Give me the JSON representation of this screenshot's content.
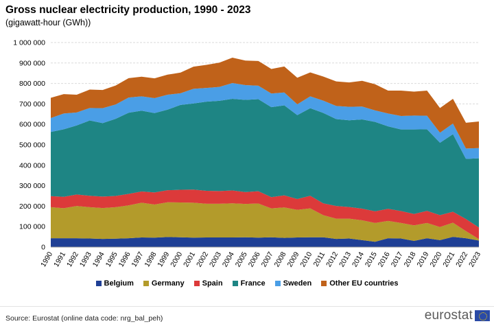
{
  "title": "Gross nuclear electricity production, 1990 - 2023",
  "subtitle": "(gigawatt-hour  (GWh))",
  "source": "Source: Eurostat (online data code: nrg_bal_peh)",
  "logo_text": "eurostat",
  "chart_data": {
    "type": "area",
    "stacked": true,
    "x": [
      "1990",
      "1991",
      "1992",
      "1993",
      "1994",
      "1995",
      "1996",
      "1997",
      "1998",
      "1999",
      "2000",
      "2001",
      "2002",
      "2003",
      "2004",
      "2005",
      "2006",
      "2007",
      "2008",
      "2009",
      "2010",
      "2011",
      "2012",
      "2013",
      "2014",
      "2015",
      "2016",
      "2017",
      "2018",
      "2019",
      "2020",
      "2021",
      "2022",
      "2023"
    ],
    "ylim": [
      0,
      1000000
    ],
    "yticks": [
      0,
      100000,
      200000,
      300000,
      400000,
      500000,
      600000,
      700000,
      800000,
      900000,
      1000000
    ],
    "ytick_labels": [
      "0",
      "100 000",
      "200 000",
      "300 000",
      "400 000",
      "500 000",
      "600 000",
      "700 000",
      "800 000",
      "900 000",
      "1 000 000"
    ],
    "grid": true,
    "legend_position": "bottom",
    "series": [
      {
        "name": "Belgium",
        "color": "#1f3f95",
        "values": [
          43000,
          43000,
          43000,
          42000,
          40000,
          41000,
          43000,
          47000,
          46000,
          49000,
          48000,
          46000,
          47000,
          47000,
          47000,
          48000,
          46000,
          48000,
          45000,
          47000,
          48000,
          48000,
          40000,
          42000,
          34000,
          26000,
          43000,
          42000,
          30000,
          43000,
          34000,
          50000,
          43000,
          32000
        ]
      },
      {
        "name": "Germany",
        "color": "#b39b2b",
        "values": [
          152000,
          147000,
          158000,
          153000,
          151000,
          154000,
          161000,
          170000,
          162000,
          170000,
          170000,
          171000,
          165000,
          165000,
          167000,
          163000,
          167000,
          141000,
          149000,
          135000,
          141000,
          108000,
          99000,
          97000,
          97000,
          92000,
          85000,
          76000,
          76000,
          75000,
          64000,
          69000,
          35000,
          7000
        ]
      },
      {
        "name": "Spain",
        "color": "#dc3a3a",
        "values": [
          54000,
          56000,
          56000,
          56000,
          56000,
          55000,
          56000,
          55000,
          59000,
          59000,
          62000,
          64000,
          63000,
          62000,
          63000,
          58000,
          60000,
          55000,
          59000,
          53000,
          62000,
          58000,
          62000,
          57000,
          57000,
          57000,
          59000,
          58000,
          56000,
          59000,
          58000,
          54000,
          59000,
          57000
        ]
      },
      {
        "name": "France",
        "color": "#1e8584",
        "values": [
          314000,
          330000,
          338000,
          368000,
          359000,
          377000,
          397000,
          395000,
          388000,
          394000,
          415000,
          421000,
          436000,
          441000,
          448000,
          451000,
          450000,
          440000,
          440000,
          410000,
          428000,
          442000,
          425000,
          424000,
          436000,
          437000,
          403000,
          399000,
          413000,
          399000,
          354000,
          379000,
          294000,
          338000
        ]
      },
      {
        "name": "Sweden",
        "color": "#4a9ee6",
        "values": [
          68000,
          77000,
          63000,
          61000,
          73000,
          70000,
          74000,
          70000,
          73000,
          73000,
          57000,
          72000,
          67000,
          68000,
          77000,
          72000,
          66000,
          67000,
          63000,
          53000,
          58000,
          60000,
          64000,
          66000,
          63000,
          56000,
          63000,
          66000,
          68000,
          66000,
          49000,
          52000,
          51000,
          50000
        ]
      },
      {
        "name": "Other EU countries",
        "color": "#c0621a",
        "values": [
          99000,
          95000,
          87000,
          90000,
          89000,
          93000,
          95000,
          96000,
          97000,
          98000,
          101000,
          108000,
          113000,
          119000,
          124000,
          120000,
          121000,
          120000,
          127000,
          130000,
          117000,
          118000,
          120000,
          119000,
          126000,
          128000,
          112000,
          124000,
          117000,
          123000,
          121000,
          121000,
          126000,
          130000
        ]
      }
    ]
  }
}
